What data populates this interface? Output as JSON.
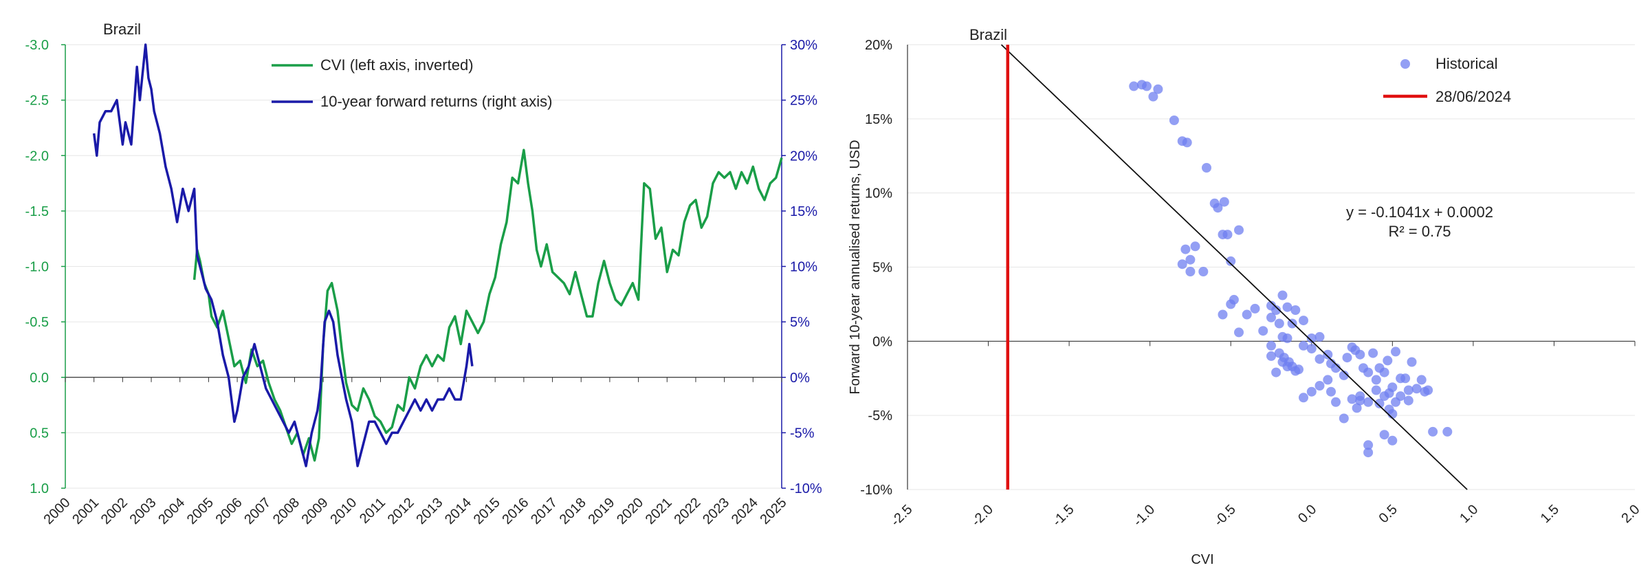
{
  "chart_data": [
    {
      "type": "line",
      "title": "Brazil",
      "legend": [
        "CVI (left axis, inverted)",
        "10-year forward returns (right axis)"
      ],
      "legend_position": "top-center",
      "x_tick_labels": [
        "2000",
        "2001",
        "2002",
        "2003",
        "2004",
        "2005",
        "2006",
        "2007",
        "2008",
        "2009",
        "2010",
        "2011",
        "2012",
        "2013",
        "2014",
        "2015",
        "2016",
        "2017",
        "2018",
        "2019",
        "2020",
        "2021",
        "2022",
        "2023",
        "2024",
        "2025"
      ],
      "left_axis": {
        "label": "",
        "ticks": [
          "-3.0",
          "-2.5",
          "-2.0",
          "-1.5",
          "-1.0",
          "-0.5",
          "0.0",
          "0.5",
          "1.0"
        ],
        "ylim": [
          -3.0,
          1.0
        ],
        "inverted": true
      },
      "right_axis": {
        "label": "",
        "ticks": [
          "30%",
          "25%",
          "20%",
          "15%",
          "10%",
          "5%",
          "0%",
          "-5%",
          "-10%"
        ],
        "ylim": [
          -10,
          30
        ]
      },
      "colors": {
        "cvi": "#1a9e48",
        "returns": "#1a1aa8",
        "left_axis": "#1a9e48",
        "right_axis": "#1a1aa8",
        "grid": "#e6e6e6"
      },
      "series": [
        {
          "name": "CVI (left axis, inverted)",
          "axis": "left",
          "x": [
            2004.5,
            2004.6,
            2004.7,
            2004.85,
            2005.0,
            2005.1,
            2005.3,
            2005.5,
            2005.7,
            2005.9,
            2006.1,
            2006.3,
            2006.5,
            2006.7,
            2006.9,
            2007.1,
            2007.3,
            2007.5,
            2007.7,
            2007.9,
            2008.1,
            2008.3,
            2008.5,
            2008.7,
            2008.85,
            2009.0,
            2009.15,
            2009.3,
            2009.5,
            2009.65,
            2009.8,
            2010.0,
            2010.2,
            2010.4,
            2010.6,
            2010.8,
            2011.0,
            2011.2,
            2011.4,
            2011.6,
            2011.8,
            2012.0,
            2012.2,
            2012.4,
            2012.6,
            2012.8,
            2013.0,
            2013.2,
            2013.4,
            2013.6,
            2013.8,
            2014.0,
            2014.2,
            2014.4,
            2014.6,
            2014.8,
            2015.0,
            2015.2,
            2015.4,
            2015.6,
            2015.8,
            2016.0,
            2016.15,
            2016.3,
            2016.45,
            2016.6,
            2016.8,
            2017.0,
            2017.2,
            2017.4,
            2017.6,
            2017.8,
            2018.0,
            2018.2,
            2018.4,
            2018.6,
            2018.8,
            2019.0,
            2019.2,
            2019.4,
            2019.6,
            2019.8,
            2020.0,
            2020.2,
            2020.4,
            2020.6,
            2020.8,
            2021.0,
            2021.2,
            2021.4,
            2021.6,
            2021.8,
            2022.0,
            2022.2,
            2022.4,
            2022.6,
            2022.8,
            2023.0,
            2023.2,
            2023.4,
            2023.6,
            2023.8,
            2024.0,
            2024.2,
            2024.4,
            2024.6,
            2024.8,
            2025.0
          ],
          "values": [
            -0.88,
            -1.15,
            -1.05,
            -0.85,
            -0.75,
            -0.55,
            -0.45,
            -0.6,
            -0.35,
            -0.1,
            -0.15,
            0.05,
            -0.25,
            -0.1,
            -0.15,
            0.05,
            0.2,
            0.3,
            0.45,
            0.6,
            0.5,
            0.7,
            0.55,
            0.75,
            0.55,
            -0.3,
            -0.78,
            -0.85,
            -0.6,
            -0.25,
            0.05,
            0.25,
            0.3,
            0.1,
            0.2,
            0.35,
            0.4,
            0.5,
            0.45,
            0.25,
            0.3,
            0.0,
            0.1,
            -0.1,
            -0.2,
            -0.1,
            -0.2,
            -0.15,
            -0.45,
            -0.55,
            -0.3,
            -0.6,
            -0.5,
            -0.4,
            -0.5,
            -0.75,
            -0.9,
            -1.2,
            -1.4,
            -1.8,
            -1.75,
            -2.05,
            -1.75,
            -1.5,
            -1.15,
            -1.0,
            -1.2,
            -0.95,
            -0.9,
            -0.85,
            -0.75,
            -0.95,
            -0.75,
            -0.55,
            -0.55,
            -0.85,
            -1.05,
            -0.85,
            -0.7,
            -0.65,
            -0.75,
            -0.85,
            -0.7,
            -1.75,
            -1.7,
            -1.25,
            -1.35,
            -0.95,
            -1.15,
            -1.1,
            -1.4,
            -1.55,
            -1.6,
            -1.35,
            -1.45,
            -1.75,
            -1.85,
            -1.8,
            -1.85,
            -1.7,
            -1.85,
            -1.75,
            -1.9,
            -1.7,
            -1.6,
            -1.75,
            -1.8,
            -1.98
          ]
        },
        {
          "name": "10-year forward returns (right axis)",
          "axis": "right",
          "x": [
            2001.0,
            2001.1,
            2001.2,
            2001.4,
            2001.6,
            2001.8,
            2002.0,
            2002.1,
            2002.3,
            2002.5,
            2002.6,
            2002.8,
            2002.9,
            2003.0,
            2003.1,
            2003.3,
            2003.5,
            2003.7,
            2003.9,
            2004.1,
            2004.3,
            2004.5,
            2004.6,
            2004.8,
            2004.9,
            2005.1,
            2005.3,
            2005.5,
            2005.7,
            2005.9,
            2006.0,
            2006.2,
            2006.4,
            2006.6,
            2006.8,
            2007.0,
            2007.2,
            2007.4,
            2007.6,
            2007.8,
            2008.0,
            2008.2,
            2008.4,
            2008.6,
            2008.8,
            2008.9,
            2009.05,
            2009.2,
            2009.35,
            2009.5,
            2009.65,
            2009.8,
            2010.0,
            2010.2,
            2010.4,
            2010.6,
            2010.8,
            2011.0,
            2011.2,
            2011.4,
            2011.6,
            2011.8,
            2012.0,
            2012.2,
            2012.4,
            2012.6,
            2012.8,
            2013.0,
            2013.2,
            2013.4,
            2013.6,
            2013.8,
            2014.0,
            2014.1,
            2014.2
          ],
          "values": [
            22,
            20,
            23,
            24,
            24,
            25,
            21,
            23,
            21,
            28,
            25,
            30,
            27,
            26,
            24,
            22,
            19,
            17,
            14,
            17,
            15,
            17,
            11,
            9,
            8,
            7,
            5,
            2,
            0,
            -4,
            -3,
            0,
            1,
            3,
            1,
            -1,
            -2,
            -3,
            -4,
            -5,
            -4,
            -6,
            -8,
            -5,
            -3,
            -1,
            5,
            6,
            5,
            2,
            0,
            -2,
            -4,
            -8,
            -6,
            -4,
            -4,
            -5,
            -6,
            -5,
            -5,
            -4,
            -3,
            -2,
            -3,
            -2,
            -3,
            -2,
            -2,
            -1,
            -2,
            -2,
            1,
            3,
            1
          ]
        }
      ]
    },
    {
      "type": "scatter",
      "title": "Brazil",
      "xlabel": "CVI",
      "ylabel": "Forward 10-year annualised returns, USD",
      "xlim": [
        -2.5,
        2.0
      ],
      "ylim": [
        -10,
        20
      ],
      "x_tick_labels": [
        "-2.5",
        "-2.0",
        "-1.5",
        "-1.0",
        "-0.5",
        "0.0",
        "0.5",
        "1.0",
        "1.5",
        "2.0"
      ],
      "y_tick_labels": [
        "20%",
        "15%",
        "10%",
        "5%",
        "0%",
        "-5%",
        "-10%"
      ],
      "legend": [
        "Historical",
        "28/06/2024"
      ],
      "legend_position": "top-right",
      "equation": "y = -0.1041x + 0.0002",
      "r_squared_label": "R² = 0.75",
      "colors": {
        "points": "#6f7ff0",
        "vertical_line": "#e01010",
        "trend": "#111111",
        "grid": "#e6e6e6"
      },
      "current_cvi": -1.88,
      "trendline": {
        "slope": -0.1041,
        "intercept": 0.0002
      },
      "points": [
        [
          -1.1,
          17.2
        ],
        [
          -1.05,
          17.3
        ],
        [
          -1.02,
          17.2
        ],
        [
          -0.98,
          16.5
        ],
        [
          -0.95,
          17.0
        ],
        [
          -0.85,
          14.9
        ],
        [
          -0.8,
          13.5
        ],
        [
          -0.77,
          13.4
        ],
        [
          -0.65,
          11.7
        ],
        [
          -0.6,
          9.3
        ],
        [
          -0.58,
          9.0
        ],
        [
          -0.55,
          7.2
        ],
        [
          -0.52,
          7.2
        ],
        [
          -0.54,
          9.4
        ],
        [
          -0.45,
          7.5
        ],
        [
          -0.5,
          5.4
        ],
        [
          -0.8,
          5.2
        ],
        [
          -0.78,
          6.2
        ],
        [
          -0.75,
          5.5
        ],
        [
          -0.72,
          6.4
        ],
        [
          -0.75,
          4.7
        ],
        [
          -0.67,
          4.7
        ],
        [
          -0.55,
          1.8
        ],
        [
          -0.5,
          2.5
        ],
        [
          -0.48,
          2.8
        ],
        [
          -0.45,
          0.6
        ],
        [
          -0.4,
          1.8
        ],
        [
          -0.35,
          2.2
        ],
        [
          -0.3,
          0.7
        ],
        [
          -0.25,
          2.4
        ],
        [
          -0.22,
          2.1
        ],
        [
          -0.18,
          3.1
        ],
        [
          -0.15,
          2.3
        ],
        [
          -0.12,
          1.2
        ],
        [
          -0.1,
          2.1
        ],
        [
          -0.05,
          1.4
        ],
        [
          0.0,
          0.2
        ],
        [
          0.05,
          0.3
        ],
        [
          -0.25,
          1.6
        ],
        [
          -0.2,
          1.2
        ],
        [
          -0.18,
          0.3
        ],
        [
          -0.15,
          0.2
        ],
        [
          -0.25,
          -0.3
        ],
        [
          -0.2,
          -0.8
        ],
        [
          -0.17,
          -1.1
        ],
        [
          -0.14,
          -1.4
        ],
        [
          -0.12,
          -1.7
        ],
        [
          -0.1,
          -2.0
        ],
        [
          -0.08,
          -1.9
        ],
        [
          -0.15,
          -1.7
        ],
        [
          -0.18,
          -1.4
        ],
        [
          -0.22,
          -2.1
        ],
        [
          -0.25,
          -1.0
        ],
        [
          -0.05,
          -0.3
        ],
        [
          0.0,
          -0.5
        ],
        [
          0.05,
          -1.2
        ],
        [
          0.1,
          -0.9
        ],
        [
          0.12,
          -1.5
        ],
        [
          0.15,
          -1.8
        ],
        [
          0.2,
          -2.3
        ],
        [
          0.22,
          -1.1
        ],
        [
          0.25,
          -0.4
        ],
        [
          0.27,
          -0.6
        ],
        [
          0.3,
          -0.9
        ],
        [
          0.32,
          -1.8
        ],
        [
          0.35,
          -2.1
        ],
        [
          0.38,
          -0.8
        ],
        [
          0.4,
          -2.6
        ],
        [
          0.42,
          -1.8
        ],
        [
          0.45,
          -2.1
        ],
        [
          0.47,
          -1.3
        ],
        [
          0.5,
          -3.1
        ],
        [
          0.52,
          -0.7
        ],
        [
          0.55,
          -3.7
        ],
        [
          0.58,
          -2.5
        ],
        [
          0.6,
          -3.3
        ],
        [
          0.62,
          -1.4
        ],
        [
          0.65,
          -3.2
        ],
        [
          0.68,
          -2.6
        ],
        [
          0.7,
          -3.4
        ],
        [
          0.72,
          -3.3
        ],
        [
          0.6,
          -4.0
        ],
        [
          0.55,
          -2.5
        ],
        [
          0.48,
          -3.5
        ],
        [
          0.45,
          -3.7
        ],
        [
          0.42,
          -4.2
        ],
        [
          0.4,
          -3.3
        ],
        [
          0.35,
          -4.1
        ],
        [
          0.3,
          -3.7
        ],
        [
          0.28,
          -4.5
        ],
        [
          0.25,
          -3.9
        ],
        [
          0.2,
          -5.2
        ],
        [
          0.15,
          -4.1
        ],
        [
          0.12,
          -3.4
        ],
        [
          0.1,
          -2.6
        ],
        [
          0.05,
          -3.0
        ],
        [
          0.0,
          -3.4
        ],
        [
          -0.05,
          -3.8
        ],
        [
          0.48,
          -4.6
        ],
        [
          0.5,
          -4.9
        ],
        [
          0.52,
          -4.1
        ],
        [
          0.45,
          -6.3
        ],
        [
          0.5,
          -6.7
        ],
        [
          0.35,
          -7.0
        ],
        [
          0.35,
          -7.5
        ],
        [
          0.75,
          -6.1
        ],
        [
          0.84,
          -6.1
        ],
        [
          0.3,
          -4.0
        ]
      ]
    }
  ]
}
